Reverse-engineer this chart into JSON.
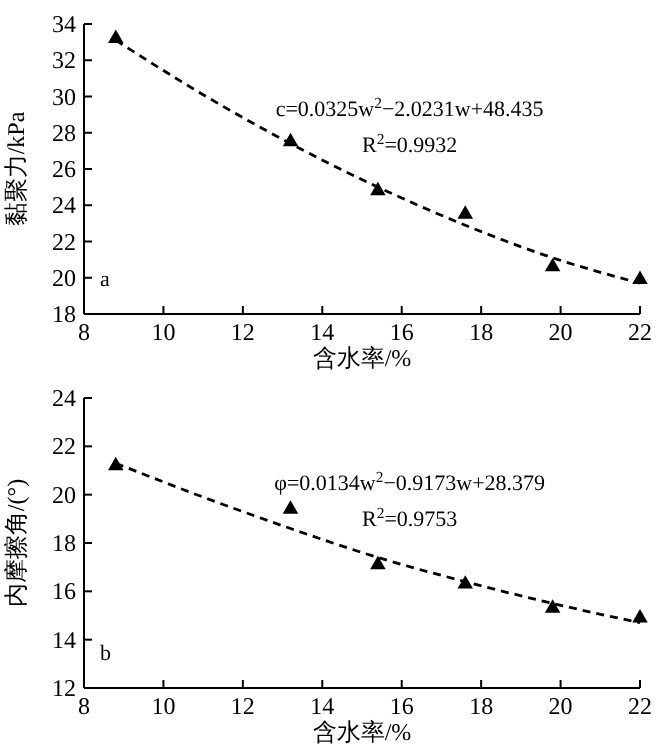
{
  "chart_data": [
    {
      "type": "scatter",
      "xlabel": "含水率/%",
      "ylabel": "黏聚力/kPa",
      "xlim": [
        8,
        22
      ],
      "xticks": [
        8,
        10,
        12,
        14,
        16,
        18,
        20,
        22
      ],
      "ylim": [
        18,
        34
      ],
      "yticks": [
        18,
        20,
        22,
        24,
        26,
        28,
        30,
        32,
        34
      ],
      "grid": false,
      "series": [
        {
          "color": "#000000",
          "marker": "triangle",
          "x": [
            8.8,
            13.2,
            15.4,
            17.6,
            19.8,
            22.0
          ],
          "values": [
            33.2,
            27.5,
            24.8,
            23.5,
            20.6,
            19.9
          ]
        },
        {
          "type": "line",
          "color": "#000000",
          "marker": "none",
          "line_style": "dashed",
          "x": [
            8.8,
            11,
            13.2,
            15.4,
            17.6,
            19.8,
            22.0
          ],
          "values": [
            33.1,
            30.1,
            27.4,
            25.0,
            22.9,
            21.1,
            19.7
          ]
        }
      ],
      "annotations": [
        "c=0.0325w$^{2}$−2.0231w+48.435",
        "R$^{2}$=0.9932",
        "a"
      ]
    },
    {
      "type": "scatter",
      "xlabel": "含水率/%",
      "ylabel": "内摩擦角/(°)",
      "xlim": [
        8,
        22
      ],
      "xticks": [
        8,
        10,
        12,
        14,
        16,
        18,
        20,
        22
      ],
      "ylim": [
        12,
        24
      ],
      "yticks": [
        12,
        14,
        16,
        18,
        20,
        22,
        24
      ],
      "grid": false,
      "series": [
        {
          "color": "#000000",
          "marker": "triangle",
          "x": [
            8.8,
            13.2,
            15.4,
            17.6,
            19.8,
            22.0
          ],
          "values": [
            21.2,
            19.4,
            17.1,
            16.3,
            15.3,
            14.9
          ]
        },
        {
          "type": "line",
          "color": "#000000",
          "marker": "none",
          "line_style": "dashed",
          "x": [
            8.8,
            11,
            13.2,
            15.4,
            17.6,
            19.8,
            22.0
          ],
          "values": [
            21.3,
            19.9,
            18.6,
            17.4,
            16.4,
            15.5,
            14.7
          ]
        }
      ],
      "annotations": [
        "φ=0.0134w$^{2}$−0.9173w+28.379",
        "R$^{2}$=0.9753",
        "b"
      ]
    }
  ]
}
